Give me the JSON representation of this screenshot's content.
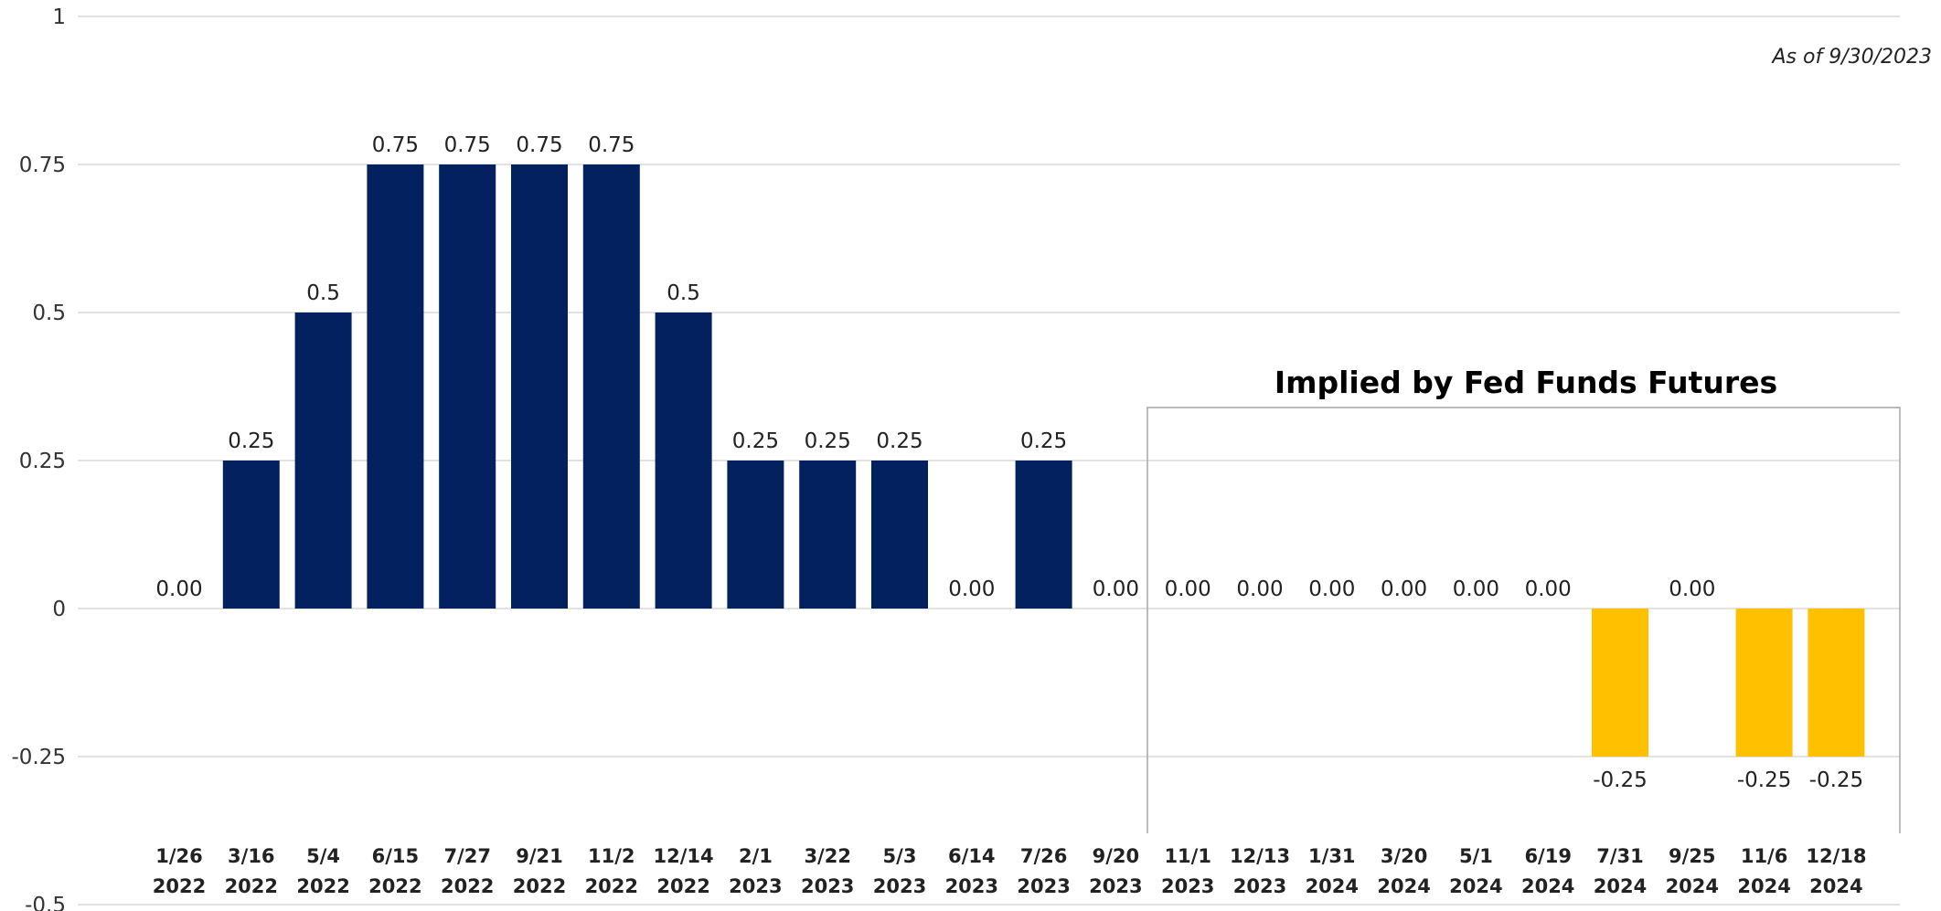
{
  "note": "As of 9/30/2023",
  "chart_data": {
    "type": "bar",
    "title": "",
    "xlabel": "",
    "ylabel": "",
    "ylim": [
      -0.5,
      1
    ],
    "y_ticks": [
      "1",
      "0.75",
      "0.5",
      "0.25",
      "0",
      "-0.25",
      "-0.5"
    ],
    "y_tick_values": [
      1,
      0.75,
      0.5,
      0.25,
      0,
      -0.25,
      -0.5
    ],
    "grid": true,
    "categories": [
      [
        "1/26",
        "2022"
      ],
      [
        "3/16",
        "2022"
      ],
      [
        "5/4",
        "2022"
      ],
      [
        "6/15",
        "2022"
      ],
      [
        "7/27",
        "2022"
      ],
      [
        "9/21",
        "2022"
      ],
      [
        "11/2",
        "2022"
      ],
      [
        "12/14",
        "2022"
      ],
      [
        "2/1",
        "2023"
      ],
      [
        "3/22",
        "2023"
      ],
      [
        "5/3",
        "2023"
      ],
      [
        "6/14",
        "2023"
      ],
      [
        "7/26",
        "2023"
      ],
      [
        "9/20",
        "2023"
      ],
      [
        "11/1",
        "2023"
      ],
      [
        "12/13",
        "2023"
      ],
      [
        "1/31",
        "2024"
      ],
      [
        "3/20",
        "2024"
      ],
      [
        "5/1",
        "2024"
      ],
      [
        "6/19",
        "2024"
      ],
      [
        "7/31",
        "2024"
      ],
      [
        "9/25",
        "2024"
      ],
      [
        "11/6",
        "2024"
      ],
      [
        "12/18",
        "2024"
      ]
    ],
    "values": [
      0,
      0.25,
      0.5,
      0.75,
      0.75,
      0.75,
      0.75,
      0.5,
      0.25,
      0.25,
      0.25,
      0,
      0.25,
      0,
      0,
      0,
      0,
      0,
      0,
      0,
      -0.25,
      0,
      -0.25,
      -0.25
    ],
    "labels": [
      "0.00",
      "0.25",
      "0.5",
      "0.75",
      "0.75",
      "0.75",
      "0.75",
      "0.5",
      "0.25",
      "0.25",
      "0.25",
      "0.00",
      "0.25",
      "0.00",
      "0.00",
      "0.00",
      "0.00",
      "0.00",
      "0.00",
      "0.00",
      "-0.25",
      "0.00",
      "-0.25",
      "-0.25"
    ],
    "colors": {
      "actual": "#02215e",
      "implied": "#ffc000",
      "grid": "#d9d9d9",
      "box": "#a6a6a6"
    },
    "implied_start_index": 14,
    "annotation": "Implied by Fed Funds Futures"
  }
}
